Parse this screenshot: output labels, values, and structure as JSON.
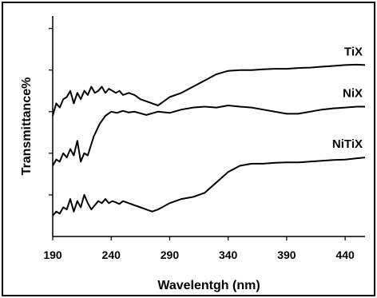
{
  "chart_data": {
    "type": "line",
    "title": "",
    "xlabel": "Wavelentgh (nm)",
    "ylabel": "Transmittance%",
    "xlim": [
      190,
      457
    ],
    "ylim": [
      0,
      5.3
    ],
    "x_ticks": [
      190,
      240,
      290,
      340,
      390,
      440
    ],
    "y_ticks": [
      1,
      2,
      3,
      4,
      5
    ],
    "y_tick_labels_shown": false,
    "grid": false,
    "legend": "labels placed next to curves at right",
    "line_color": "#000000",
    "series": [
      {
        "name": "TiX",
        "x": [
          190,
          193,
          196,
          199,
          202,
          205,
          208,
          211,
          214,
          217,
          220,
          223,
          226,
          229,
          232,
          235,
          238,
          241,
          244,
          247,
          250,
          255,
          260,
          265,
          270,
          275,
          280,
          285,
          290,
          300,
          310,
          320,
          330,
          340,
          350,
          360,
          370,
          380,
          390,
          400,
          410,
          420,
          430,
          440,
          450,
          457
        ],
        "y": [
          2.9,
          3.2,
          3.1,
          3.3,
          3.35,
          3.5,
          3.2,
          3.45,
          3.3,
          3.5,
          3.4,
          3.6,
          3.45,
          3.5,
          3.6,
          3.45,
          3.55,
          3.5,
          3.45,
          3.5,
          3.4,
          3.45,
          3.4,
          3.3,
          3.25,
          3.2,
          3.15,
          3.25,
          3.35,
          3.45,
          3.6,
          3.75,
          3.9,
          3.98,
          4.0,
          4.0,
          4.02,
          4.03,
          4.03,
          4.05,
          4.06,
          4.08,
          4.1,
          4.12,
          4.13,
          4.12
        ]
      },
      {
        "name": "NiX",
        "x": [
          190,
          193,
          196,
          199,
          202,
          205,
          208,
          211,
          214,
          217,
          220,
          225,
          230,
          235,
          240,
          245,
          250,
          255,
          260,
          270,
          280,
          290,
          300,
          310,
          320,
          330,
          340,
          350,
          360,
          370,
          380,
          390,
          400,
          410,
          420,
          430,
          440,
          450,
          457
        ],
        "y": [
          1.7,
          1.85,
          1.8,
          2.0,
          1.9,
          2.1,
          1.95,
          2.3,
          1.8,
          2.0,
          1.95,
          2.4,
          2.7,
          2.9,
          3.0,
          2.97,
          3.02,
          2.98,
          3.0,
          2.92,
          3.0,
          2.97,
          3.05,
          3.1,
          3.12,
          3.1,
          3.15,
          3.12,
          3.1,
          3.05,
          3.0,
          2.95,
          2.95,
          3.0,
          3.05,
          3.08,
          3.1,
          3.12,
          3.12
        ]
      },
      {
        "name": "NiTiX",
        "x": [
          190,
          193,
          196,
          199,
          202,
          205,
          208,
          211,
          214,
          217,
          220,
          223,
          226,
          229,
          232,
          235,
          238,
          241,
          244,
          247,
          250,
          255,
          260,
          265,
          270,
          275,
          280,
          290,
          300,
          310,
          320,
          330,
          340,
          350,
          360,
          370,
          380,
          390,
          400,
          410,
          420,
          430,
          440,
          450,
          457
        ],
        "y": [
          0.5,
          0.6,
          0.55,
          0.7,
          0.65,
          0.9,
          0.6,
          0.85,
          0.7,
          1.0,
          0.8,
          0.65,
          0.75,
          0.85,
          0.8,
          0.9,
          0.8,
          0.85,
          0.82,
          0.78,
          0.85,
          0.8,
          0.75,
          0.7,
          0.65,
          0.6,
          0.65,
          0.8,
          0.9,
          0.95,
          1.05,
          1.3,
          1.55,
          1.7,
          1.75,
          1.75,
          1.77,
          1.78,
          1.78,
          1.8,
          1.82,
          1.84,
          1.85,
          1.88,
          1.9
        ]
      }
    ]
  }
}
